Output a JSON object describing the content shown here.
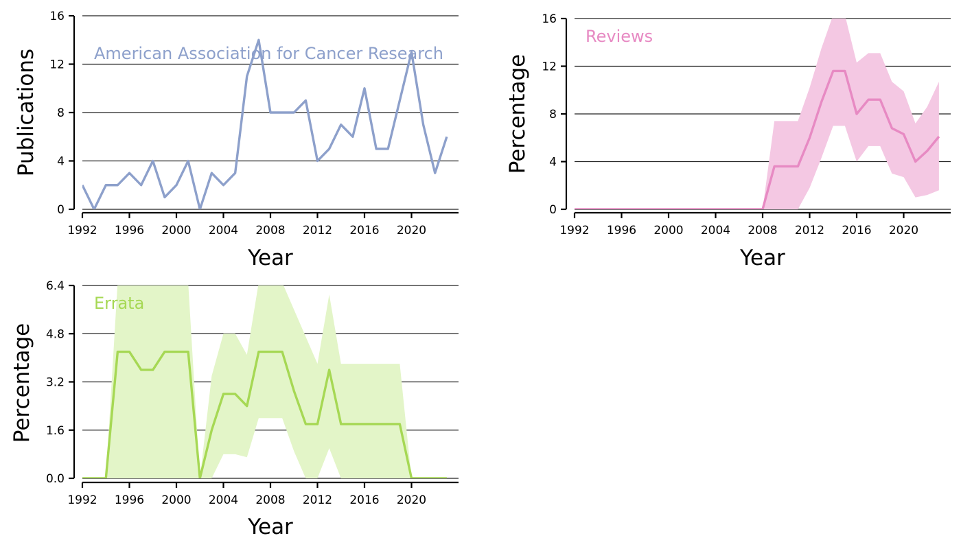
{
  "chart_data": [
    {
      "type": "line",
      "title": "American Association for Cancer Research",
      "xlabel": "Year",
      "ylabel": "Publications",
      "xlim": [
        1992,
        2024
      ],
      "ylim": [
        0,
        16
      ],
      "xticks": [
        1992,
        1996,
        2000,
        2004,
        2008,
        2012,
        2016,
        2020
      ],
      "yticks": [
        0,
        4,
        8,
        12,
        16
      ],
      "ytick_labels": [
        "0",
        "4",
        "8",
        "12",
        "16"
      ],
      "grid": true,
      "color": "#8da0cb",
      "x": [
        1992,
        1993,
        1994,
        1995,
        1996,
        1997,
        1998,
        1999,
        2000,
        2001,
        2002,
        2003,
        2004,
        2005,
        2006,
        2007,
        2008,
        2009,
        2010,
        2011,
        2012,
        2013,
        2014,
        2015,
        2016,
        2017,
        2018,
        2019,
        2020,
        2021,
        2022,
        2023
      ],
      "values": [
        2,
        0,
        2,
        2,
        3,
        2,
        4,
        1,
        2,
        4,
        0,
        3,
        2,
        3,
        11,
        14,
        8,
        8,
        8,
        9,
        4,
        5,
        7,
        6,
        10,
        5,
        5,
        9,
        13,
        7,
        3,
        6
      ]
    },
    {
      "type": "area",
      "title": "Reviews",
      "xlabel": "Year",
      "ylabel": "Percentage",
      "xlim": [
        1992,
        2024
      ],
      "ylim": [
        0,
        16
      ],
      "xticks": [
        1992,
        1996,
        2000,
        2004,
        2008,
        2012,
        2016,
        2020
      ],
      "yticks": [
        0,
        4,
        8,
        12,
        16
      ],
      "ytick_labels": [
        "0",
        "4",
        "8",
        "12",
        "16"
      ],
      "grid": true,
      "color": "#e78ac3",
      "band_color": "#f4c8e3",
      "x": [
        1992,
        1993,
        1994,
        1995,
        1996,
        1997,
        1998,
        1999,
        2000,
        2001,
        2002,
        2003,
        2004,
        2005,
        2006,
        2007,
        2008,
        2009,
        2010,
        2011,
        2012,
        2013,
        2014,
        2015,
        2016,
        2017,
        2018,
        2019,
        2020,
        2021,
        2022,
        2023
      ],
      "values": [
        0,
        0,
        0,
        0,
        0,
        0,
        0,
        0,
        0,
        0,
        0,
        0,
        0,
        0,
        0,
        0,
        0,
        3.6,
        3.6,
        3.6,
        6,
        9,
        11.6,
        11.6,
        8,
        9.2,
        9.2,
        6.8,
        6.3,
        4,
        4.9,
        6.1
      ],
      "lower": [
        0,
        0,
        0,
        0,
        0,
        0,
        0,
        0,
        0,
        0,
        0,
        0,
        0,
        0,
        0,
        0,
        0,
        0,
        0,
        0,
        1.8,
        4.3,
        7,
        7,
        4,
        5.3,
        5.3,
        3,
        2.7,
        1,
        1.2,
        1.6
      ],
      "upper": [
        0,
        0,
        0,
        0,
        0,
        0,
        0,
        0,
        0,
        0,
        0,
        0,
        0,
        0,
        0,
        0,
        0,
        7.4,
        7.4,
        7.4,
        10.2,
        13.5,
        16.3,
        16.3,
        12.3,
        13.1,
        13.1,
        10.7,
        9.9,
        7.2,
        8.6,
        10.7
      ]
    },
    {
      "type": "area",
      "title": "Errata",
      "xlabel": "Year",
      "ylabel": "Percentage",
      "xlim": [
        1992,
        2024
      ],
      "ylim": [
        0,
        6.4
      ],
      "xticks": [
        1992,
        1996,
        2000,
        2004,
        2008,
        2012,
        2016,
        2020
      ],
      "yticks": [
        0,
        1.6,
        3.2,
        4.8,
        6.4
      ],
      "ytick_labels": [
        "0.0",
        "1.6",
        "3.2",
        "4.8",
        "6.4"
      ],
      "grid": true,
      "color": "#a6d854",
      "band_color": "#e3f5c8",
      "x": [
        1992,
        1993,
        1994,
        1995,
        1996,
        1997,
        1998,
        1999,
        2000,
        2001,
        2002,
        2003,
        2004,
        2005,
        2006,
        2007,
        2008,
        2009,
        2010,
        2011,
        2012,
        2013,
        2014,
        2015,
        2016,
        2017,
        2018,
        2019,
        2020,
        2021,
        2022,
        2023
      ],
      "values": [
        0,
        0,
        0,
        4.2,
        4.2,
        3.6,
        3.6,
        4.2,
        4.2,
        4.2,
        0,
        1.6,
        2.8,
        2.8,
        2.4,
        4.2,
        4.2,
        4.2,
        2.9,
        1.8,
        1.8,
        3.6,
        1.8,
        1.8,
        1.8,
        1.8,
        1.8,
        1.8,
        0,
        0,
        0,
        0
      ],
      "lower": [
        0,
        0,
        0,
        0,
        0,
        0,
        0,
        0,
        0,
        0,
        0,
        0,
        0.8,
        0.8,
        0.7,
        2,
        2,
        2,
        0.9,
        0,
        0,
        1,
        0,
        0,
        0,
        0,
        0,
        0,
        0,
        0,
        0,
        0
      ],
      "upper": [
        0,
        0,
        0,
        6.5,
        6.5,
        6.5,
        6.5,
        6.5,
        6.5,
        6.5,
        0,
        3.4,
        4.8,
        4.8,
        4.1,
        6.5,
        6.5,
        6.5,
        5.6,
        4.7,
        3.8,
        6.1,
        3.8,
        3.8,
        3.8,
        3.8,
        3.8,
        3.8,
        0,
        0,
        0,
        0
      ]
    }
  ]
}
